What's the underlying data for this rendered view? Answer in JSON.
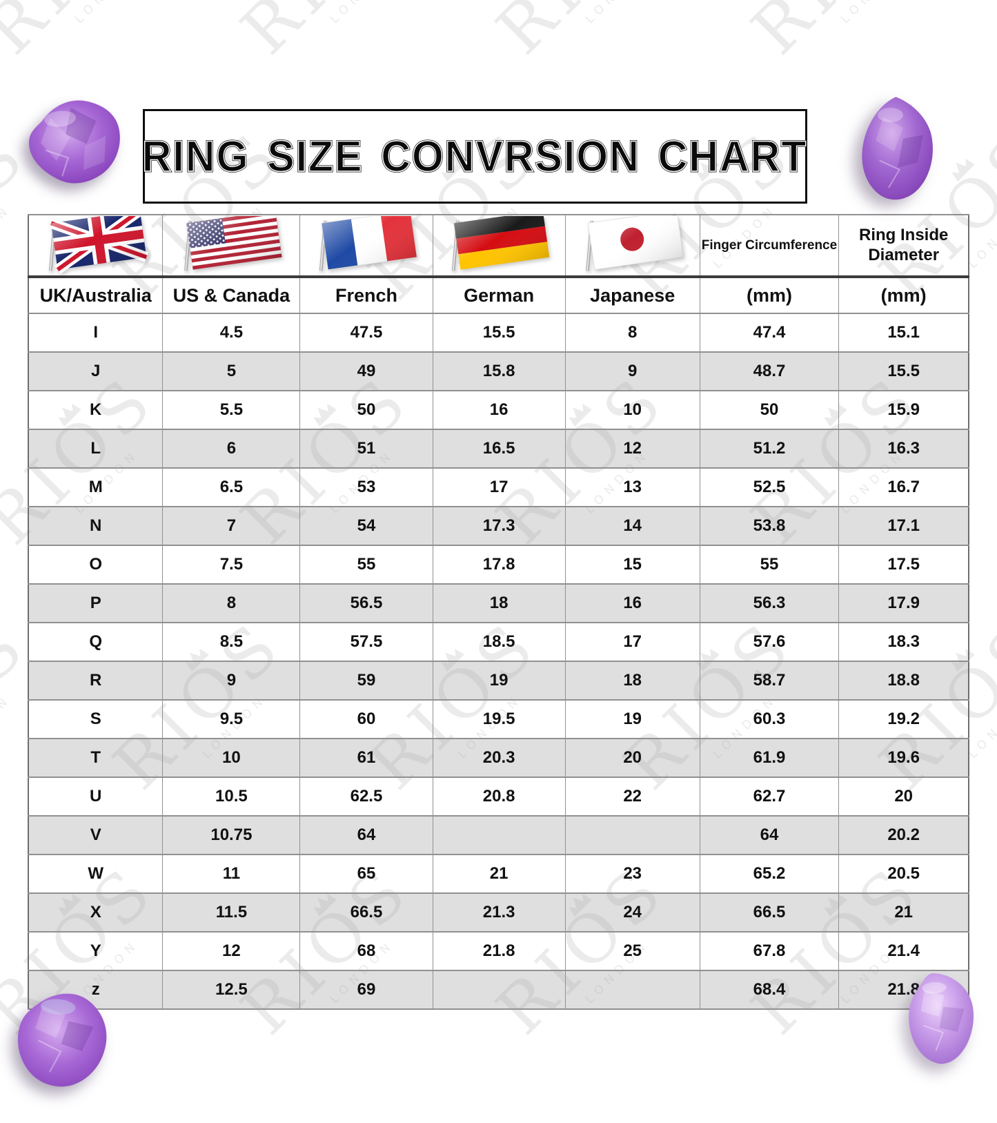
{
  "chart_data": {
    "type": "table",
    "title": "RING SIZE CONVRSION CHART",
    "columns": [
      {
        "label": "UK/Australia",
        "flag": "uk-flag"
      },
      {
        "label": "US & Canada",
        "flag": "us-flag"
      },
      {
        "label": "French",
        "flag": "france-flag"
      },
      {
        "label": "German",
        "flag": "germany-flag"
      },
      {
        "label": "Japanese",
        "flag": "japan-flag"
      },
      {
        "label": "(mm)",
        "header": "Finger Circumference"
      },
      {
        "label": "(mm)",
        "header": "Ring Inside Diameter"
      }
    ],
    "rows": [
      [
        "I",
        "4.5",
        "47.5",
        "15.5",
        "8",
        "47.4",
        "15.1"
      ],
      [
        "J",
        "5",
        "49",
        "15.8",
        "9",
        "48.7",
        "15.5"
      ],
      [
        "K",
        "5.5",
        "50",
        "16",
        "10",
        "50",
        "15.9"
      ],
      [
        "L",
        "6",
        "51",
        "16.5",
        "12",
        "51.2",
        "16.3"
      ],
      [
        "M",
        "6.5",
        "53",
        "17",
        "13",
        "52.5",
        "16.7"
      ],
      [
        "N",
        "7",
        "54",
        "17.3",
        "14",
        "53.8",
        "17.1"
      ],
      [
        "O",
        "7.5",
        "55",
        "17.8",
        "15",
        "55",
        "17.5"
      ],
      [
        "P",
        "8",
        "56.5",
        "18",
        "16",
        "56.3",
        "17.9"
      ],
      [
        "Q",
        "8.5",
        "57.5",
        "18.5",
        "17",
        "57.6",
        "18.3"
      ],
      [
        "R",
        "9",
        "59",
        "19",
        "18",
        "58.7",
        "18.8"
      ],
      [
        "S",
        "9.5",
        "60",
        "19.5",
        "19",
        "60.3",
        "19.2"
      ],
      [
        "T",
        "10",
        "61",
        "20.3",
        "20",
        "61.9",
        "19.6"
      ],
      [
        "U",
        "10.5",
        "62.5",
        "20.8",
        "22",
        "62.7",
        "20"
      ],
      [
        "V",
        "10.75",
        "64",
        "",
        "",
        "64",
        "20.2"
      ],
      [
        "W",
        "11",
        "65",
        "21",
        "23",
        "65.2",
        "20.5"
      ],
      [
        "X",
        "11.5",
        "66.5",
        "21.3",
        "24",
        "66.5",
        "21"
      ],
      [
        "Y",
        "12",
        "68",
        "21.8",
        "25",
        "67.8",
        "21.4"
      ],
      [
        "z",
        "12.5",
        "69",
        "",
        "",
        "68.4",
        "21.8"
      ]
    ],
    "striped": true
  },
  "watermark": {
    "brand": "RIOS",
    "city": "LONDON"
  },
  "colors": {
    "row_alt": "#e0e0e0",
    "table_border": "#8f8f8f",
    "header_divider": "#3a3a3a",
    "title_color": "#0b0b0b",
    "watermark_color": "#ebebeb",
    "amethyst_dark": "#6d2f9e",
    "amethyst_light": "#c9a0e8",
    "uk_blue": "#15246b",
    "uk_red": "#cf142b",
    "us_red": "#b22234",
    "us_blue": "#3c3b6e",
    "fr_blue": "#1f4aa5",
    "fr_red": "#e4323b",
    "de_black": "#1a1a1a",
    "de_red": "#d40d12",
    "de_gold": "#ffc400",
    "jp_red": "#c0202f"
  }
}
